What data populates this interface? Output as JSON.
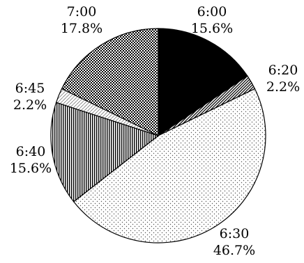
{
  "chart_data": {
    "type": "pie",
    "start_angle_deg": 0,
    "direction": "clockwise",
    "slices": [
      {
        "label": "6:00",
        "value": 15.6,
        "percent_label": "15.6%",
        "pattern": "solid-black"
      },
      {
        "label": "6:20",
        "value": 2.2,
        "percent_label": "2.2%",
        "pattern": "diagonal-lines"
      },
      {
        "label": "6:30",
        "value": 46.7,
        "percent_label": "46.7%",
        "pattern": "light-dots"
      },
      {
        "label": "6:40",
        "value": 15.6,
        "percent_label": "15.6%",
        "pattern": "vertical-lines"
      },
      {
        "label": "6:45",
        "value": 2.2,
        "percent_label": "2.2%",
        "pattern": "fine-diagonal"
      },
      {
        "label": "7:00",
        "value": 17.8,
        "percent_label": "17.8%",
        "pattern": "checkerboard"
      }
    ]
  }
}
